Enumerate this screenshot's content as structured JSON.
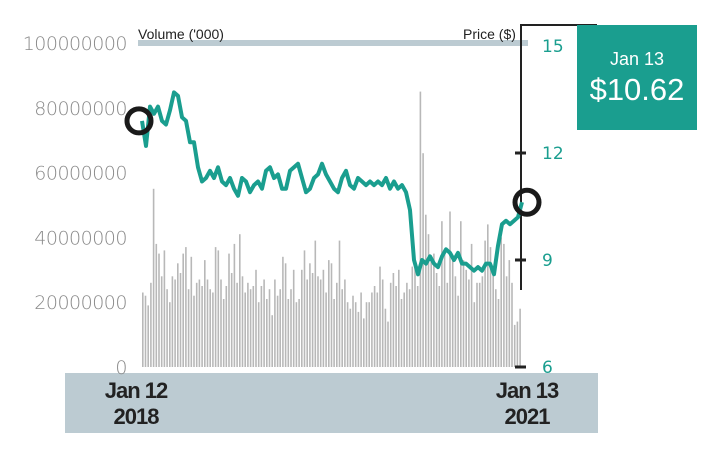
{
  "chart_data": {
    "type": "bar+line",
    "title": "",
    "left_axis_label": "Volume ('000)",
    "right_axis_label": "Price ($)",
    "volume_ticks": [
      "0",
      "20000000",
      "40000000",
      "60000000",
      "80000000",
      "100000000"
    ],
    "volume_ylim": [
      0,
      100000000
    ],
    "price_ticks": [
      "6",
      "9",
      "12",
      "15"
    ],
    "price_ylim": [
      6,
      15
    ],
    "x_start_label": {
      "line1": "Jan 12",
      "line2": "2018"
    },
    "x_end_label": {
      "line1": "Jan 13",
      "line2": "2021"
    },
    "volume_millions": [
      23,
      22,
      19,
      26,
      55,
      38,
      35,
      28,
      36,
      24,
      20,
      28,
      27,
      32,
      29,
      35,
      37,
      24,
      34,
      22,
      26,
      27,
      25,
      33,
      27,
      24,
      23,
      37,
      36,
      27,
      21,
      25,
      35,
      29,
      38,
      26,
      41,
      28,
      23,
      26,
      24,
      25,
      30,
      20,
      25,
      27,
      21,
      24,
      16,
      27,
      22,
      24,
      34,
      32,
      21,
      24,
      30,
      20,
      21,
      30,
      36,
      27,
      32,
      29,
      39,
      28,
      27,
      30,
      23,
      33,
      32,
      21,
      26,
      39,
      24,
      27,
      20,
      18,
      22,
      20,
      17,
      23,
      15,
      20,
      20,
      23,
      25,
      23,
      31,
      27,
      18,
      14,
      26,
      29,
      25,
      30,
      21,
      23,
      26,
      24,
      31,
      32,
      25,
      85,
      66,
      47,
      41,
      33,
      35,
      29,
      25,
      45,
      36,
      26,
      48,
      33,
      28,
      22,
      45,
      33,
      30,
      27,
      38,
      20,
      26,
      26,
      28,
      39,
      44,
      37,
      31,
      24,
      21,
      40,
      38,
      28,
      33,
      26,
      13,
      14,
      18
    ],
    "price_series": [
      12.9,
      12.2,
      13.3,
      13.1,
      13.3,
      12.9,
      12.8,
      13.2,
      13.7,
      13.6,
      13.0,
      12.9,
      12.3,
      12.3,
      11.6,
      11.2,
      11.3,
      11.5,
      11.3,
      11.6,
      11.2,
      11.1,
      11.3,
      11.0,
      10.8,
      11.3,
      11.2,
      10.9,
      11.1,
      11.2,
      11.0,
      11.5,
      11.6,
      11.3,
      11.4,
      11.0,
      11.0,
      11.5,
      11.6,
      11.7,
      11.3,
      10.9,
      11.0,
      11.3,
      11.4,
      11.7,
      11.4,
      11.2,
      11.0,
      10.9,
      11.3,
      11.5,
      11.1,
      11.0,
      11.3,
      11.2,
      11.1,
      11.2,
      11.1,
      11.2,
      11.1,
      11.3,
      11.0,
      11.2,
      11.0,
      11.1,
      10.9,
      10.4,
      9.0,
      8.6,
      9.0,
      8.9,
      9.1,
      8.9,
      8.8,
      9.1,
      9.3,
      9.2,
      9.0,
      9.2,
      8.9,
      8.9,
      8.8,
      8.7,
      8.8,
      8.7,
      8.9,
      8.9,
      8.6,
      9.4,
      10.0,
      10.1,
      10.0,
      10.1,
      10.2,
      10.62
    ],
    "callout": {
      "date": "Jan 13",
      "price": "$10.62"
    },
    "colors": {
      "price_line": "#1a9e8f",
      "volume_bar": "#b8b8b8",
      "band": "#bccbd2",
      "marker": "#1a1a1a"
    }
  }
}
